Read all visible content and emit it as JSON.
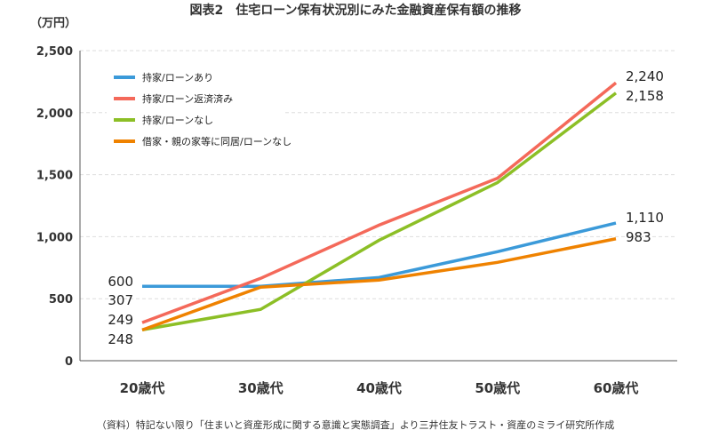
{
  "chart_data": {
    "type": "line",
    "title": "図表2　住宅ローン保有状況別にみた金融資産保有額の推移",
    "ylabel": "（万円）",
    "xlabel": "",
    "categories": [
      "20歳代",
      "30歳代",
      "40歳代",
      "50歳代",
      "60歳代"
    ],
    "ylim": [
      0,
      2500
    ],
    "yticks": [
      "0",
      "500",
      "1,000",
      "1,500",
      "2,000",
      "2,500"
    ],
    "grid": true,
    "legend": "top-left",
    "series": [
      {
        "name": "持家/ローンあり",
        "color": "#3b9ad9",
        "values": [
          600,
          600,
          671,
          879,
          1110
        ]
      },
      {
        "name": "持家/ローン返済済み",
        "color": "#f4695a",
        "values": [
          307,
          664,
          1093,
          1471,
          2240
        ]
      },
      {
        "name": "持家/ローンなし",
        "color": "#8cbf26",
        "values": [
          249,
          414,
          971,
          1436,
          2158
        ]
      },
      {
        "name": "借家・親の家等に同居/ローンなし",
        "color": "#ef8200",
        "values": [
          248,
          593,
          650,
          793,
          983
        ]
      }
    ],
    "start_labels": [
      "600",
      "307",
      "249",
      "248"
    ],
    "end_labels": [
      "2,240",
      "2,158",
      "1,110",
      "983"
    ],
    "source": "（資料）特記ない限り「住まいと資産形成に関する意識と実態調査」より三井住友トラスト・資産のミライ研究所作成"
  }
}
